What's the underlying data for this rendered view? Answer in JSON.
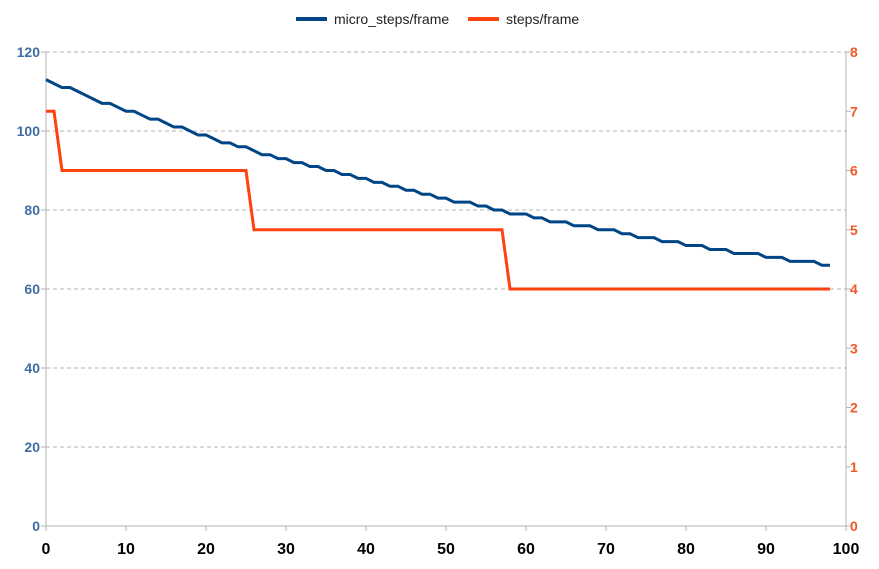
{
  "chart_data": {
    "type": "line",
    "title": "",
    "xlabel": "",
    "ylabel": "",
    "y2label": "",
    "xlim": [
      0,
      100
    ],
    "ylim": [
      0,
      120
    ],
    "y2lim": [
      0,
      8
    ],
    "x_ticks": [
      "0",
      "10",
      "20",
      "30",
      "40",
      "50",
      "60",
      "70",
      "80",
      "90",
      "100"
    ],
    "y_ticks": [
      "0",
      "20",
      "40",
      "60",
      "80",
      "100",
      "120"
    ],
    "y2_ticks": [
      "0",
      "1",
      "2",
      "3",
      "4",
      "5",
      "6",
      "7",
      "8"
    ],
    "grid": "horizontal dashed",
    "legend": "top-center",
    "series": [
      {
        "name": "micro_steps/frame",
        "axis": "left",
        "color": "#004586",
        "x": [
          0,
          1,
          2,
          3,
          4,
          5,
          6,
          7,
          8,
          9,
          10,
          11,
          12,
          13,
          14,
          15,
          16,
          17,
          18,
          19,
          20,
          21,
          22,
          23,
          24,
          25,
          26,
          27,
          28,
          29,
          30,
          31,
          32,
          33,
          34,
          35,
          36,
          37,
          38,
          39,
          40,
          41,
          42,
          43,
          44,
          45,
          46,
          47,
          48,
          49,
          50,
          51,
          52,
          53,
          54,
          55,
          56,
          57,
          58,
          59,
          60,
          61,
          62,
          63,
          64,
          65,
          66,
          67,
          68,
          69,
          70,
          71,
          72,
          73,
          74,
          75,
          76,
          77,
          78,
          79,
          80,
          81,
          82,
          83,
          84,
          85,
          86,
          87,
          88,
          89,
          90,
          91,
          92,
          93,
          94,
          95,
          96,
          97,
          98
        ],
        "values": [
          113,
          112,
          111,
          111,
          110,
          109,
          108,
          107,
          107,
          106,
          105,
          105,
          104,
          103,
          103,
          102,
          101,
          101,
          100,
          99,
          99,
          98,
          97,
          97,
          96,
          96,
          95,
          94,
          94,
          93,
          93,
          92,
          92,
          91,
          91,
          90,
          90,
          89,
          89,
          88,
          88,
          87,
          87,
          86,
          86,
          85,
          85,
          84,
          84,
          83,
          83,
          82,
          82,
          82,
          81,
          81,
          80,
          80,
          79,
          79,
          79,
          78,
          78,
          77,
          77,
          77,
          76,
          76,
          76,
          75,
          75,
          75,
          74,
          74,
          73,
          73,
          73,
          72,
          72,
          72,
          71,
          71,
          71,
          70,
          70,
          70,
          69,
          69,
          69,
          69,
          68,
          68,
          68,
          67,
          67,
          67,
          67,
          66,
          66
        ]
      },
      {
        "name": "steps/frame",
        "axis": "right",
        "color": "#ff420e",
        "x": [
          0,
          1,
          2,
          25,
          26,
          57,
          58,
          98
        ],
        "values": [
          7,
          7,
          6,
          6,
          5,
          5,
          4,
          4
        ]
      }
    ]
  }
}
